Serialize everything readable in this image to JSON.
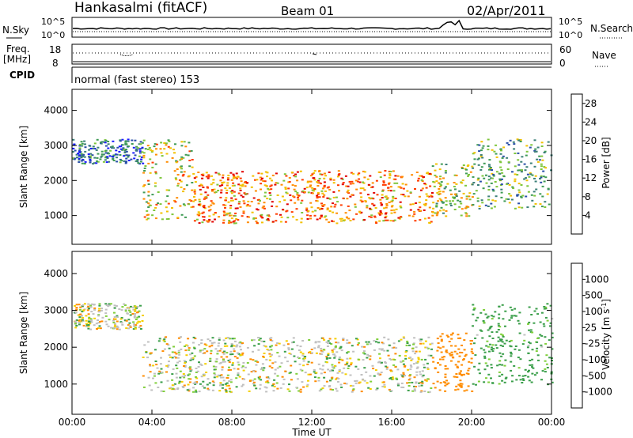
{
  "header": {
    "station": "Hankasalmi (fitACF)",
    "beam": "Beam 01",
    "date": "02/Apr/2011"
  },
  "status_panels": {
    "nsky_label": "N.Sky",
    "nsearch_label": "N.Search",
    "noise_ticks_left": [
      "10^5",
      "10^0"
    ],
    "noise_ticks_right": [
      "10^5",
      "10^0"
    ],
    "freq_label_1": "Freq.",
    "freq_label_2": "[MHz]",
    "freq_ticks": [
      "18",
      "8"
    ],
    "nave_label": "Nave",
    "nave_ticks": [
      "60",
      "0"
    ],
    "cpid_label": "CPID",
    "cpid_text": "normal (fast stereo) 153"
  },
  "colors": {
    "power": [
      "#1a1aff",
      "#2a4fa8",
      "#3c7f78",
      "#3f9b55",
      "#7ec63c",
      "#f2c100",
      "#ff8c00",
      "#ff3c00",
      "#e00000"
    ],
    "velocity": [
      "#1a5fb4",
      "#2d8f8f",
      "#3a9e4a",
      "#7fcf3a",
      "#c0c0c0",
      "#f5d000",
      "#ff8c00",
      "#ff4500",
      "#e00000"
    ],
    "ground_scatter": "#c0c0c0"
  },
  "chart_data": [
    {
      "type": "heatmap",
      "name_key": "power",
      "xlabel": "",
      "ylabel": "Slant Range [km]",
      "xlim": [
        0,
        24
      ],
      "ylim": [
        180,
        4600
      ],
      "y_ticks": [
        "1000",
        "2000",
        "3000",
        "4000"
      ],
      "colorbar": {
        "label": "Power [dB]",
        "ticks": [
          "4",
          "8",
          "12",
          "16",
          "20",
          "24",
          "28"
        ],
        "range": [
          0,
          30
        ]
      },
      "scatter_bands": [
        {
          "start": 0.0,
          "end": 3.5,
          "low": 2500,
          "high": 3200,
          "value": 8
        },
        {
          "start": 3.5,
          "end": 6.0,
          "low": 900,
          "high": 3200,
          "value": 18
        },
        {
          "start": 6.0,
          "end": 18.0,
          "low": 800,
          "high": 2300,
          "value": 22
        },
        {
          "start": 18.0,
          "end": 20.0,
          "low": 1000,
          "high": 2500,
          "value": 16
        },
        {
          "start": 20.0,
          "end": 24.0,
          "low": 1200,
          "high": 3200,
          "value": 12
        }
      ]
    },
    {
      "type": "heatmap",
      "name_key": "velocity",
      "xlabel": "Time UT",
      "ylabel": "Slant Range [km]",
      "xlim": [
        0,
        24
      ],
      "ylim": [
        180,
        4600
      ],
      "x_ticks": [
        "00:00",
        "04:00",
        "08:00",
        "12:00",
        "16:00",
        "20:00",
        "00:00"
      ],
      "y_ticks": [
        "1000",
        "2000",
        "3000",
        "4000"
      ],
      "colorbar": {
        "label": "Velocity [m s",
        "label_sup": "-1",
        "label_end": "]",
        "ticks": [
          "1000",
          "500",
          "100",
          "25",
          "-25",
          "-100",
          "-500",
          "-1000"
        ]
      },
      "scatter_bands": [
        {
          "start": 0.0,
          "end": 3.5,
          "low": 2500,
          "high": 3200,
          "value": 0
        },
        {
          "start": 3.5,
          "end": 18.0,
          "low": 800,
          "high": 2300,
          "value": 0
        },
        {
          "start": 18.0,
          "end": 20.0,
          "low": 800,
          "high": 2400,
          "value": -300
        },
        {
          "start": 20.0,
          "end": 24.0,
          "low": 1000,
          "high": 3200,
          "value": 200
        }
      ]
    }
  ]
}
